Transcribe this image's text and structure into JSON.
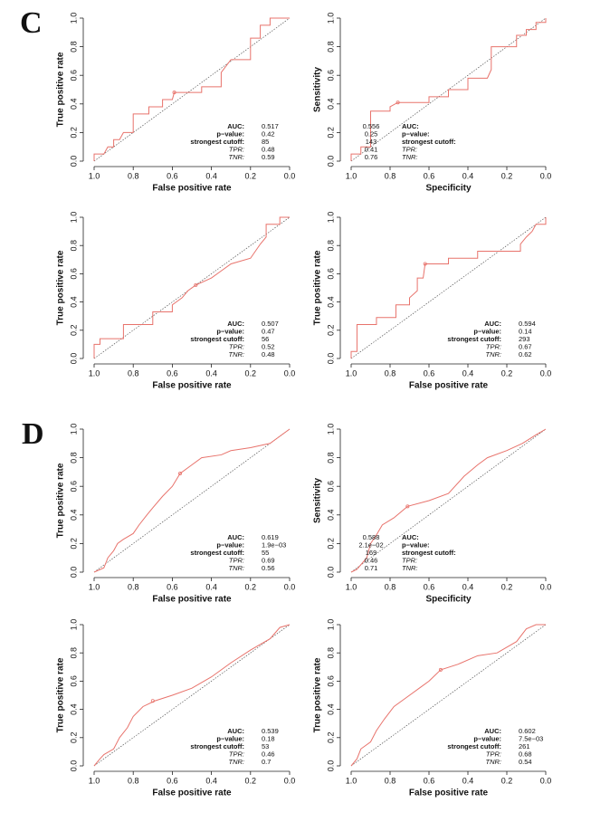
{
  "panels": [
    "C",
    "D"
  ],
  "chart_data": [
    {
      "type": "line",
      "xlabel": "False positive rate",
      "ylabel": "True positive rate",
      "x": [
        1,
        1,
        0.95,
        0.93,
        0.9,
        0.9,
        0.87,
        0.85,
        0.8,
        0.8,
        0.72,
        0.72,
        0.65,
        0.65,
        0.6,
        0.59,
        0.45,
        0.45,
        0.35,
        0.35,
        0.3,
        0.2,
        0.2,
        0.15,
        0.15,
        0.1,
        0.1,
        0
      ],
      "series": [
        {
          "color": "#e8736c",
          "values": [
            0,
            0.05,
            0.05,
            0.1,
            0.1,
            0.15,
            0.15,
            0.2,
            0.2,
            0.33,
            0.33,
            0.38,
            0.38,
            0.43,
            0.43,
            0.48,
            0.48,
            0.52,
            0.52,
            0.62,
            0.71,
            0.71,
            0.86,
            0.86,
            0.95,
            0.95,
            1,
            1
          ]
        }
      ],
      "xlim": [
        1,
        0
      ],
      "ylim": [
        0,
        1
      ],
      "xticks": [
        {
          "value": 1,
          "label": "1.0"
        },
        0.8,
        0.6,
        0.4,
        0.2,
        {
          "value": 0,
          "label": "0.0"
        }
      ],
      "yticks": [
        {
          "value": 0,
          "label": "0.0"
        },
        0.2,
        0.4,
        0.6,
        0.8,
        {
          "value": 1,
          "label": "1.0"
        }
      ],
      "stat_labels": [
        "AUC:",
        "p−value:",
        "strongest cutoff:",
        "TPR:",
        "TNR:"
      ],
      "auc": 0.517,
      "p_value": 0.42,
      "cutoff": 85,
      "tpr": 0.48,
      "tnr": 0.59
    },
    {
      "type": "line",
      "xlabel": "Specificity",
      "ylabel": "Sensitivity",
      "x": [
        1,
        1,
        0.95,
        0.95,
        0.9,
        0.9,
        0.8,
        0.8,
        0.76,
        0.6,
        0.6,
        0.5,
        0.5,
        0.4,
        0.4,
        0.3,
        0.28,
        0.28,
        0.15,
        0.15,
        0.1,
        0.1,
        0.05,
        0.05,
        0,
        0
      ],
      "series": [
        {
          "color": "#e8736c",
          "values": [
            0,
            0.05,
            0.05,
            0.1,
            0.1,
            0.35,
            0.35,
            0.38,
            0.41,
            0.41,
            0.45,
            0.45,
            0.5,
            0.5,
            0.58,
            0.58,
            0.64,
            0.8,
            0.8,
            0.88,
            0.88,
            0.92,
            0.92,
            0.97,
            0.97,
            1
          ]
        }
      ],
      "xlim": [
        1,
        0
      ],
      "ylim": [
        0,
        1
      ],
      "xticks": [
        {
          "value": 1,
          "label": "1.0"
        },
        0.8,
        0.6,
        0.4,
        0.2,
        {
          "value": 0,
          "label": "0.0"
        }
      ],
      "yticks": [
        {
          "value": 0,
          "label": "0.0"
        },
        0.2,
        0.4,
        0.6,
        0.8,
        {
          "value": 1,
          "label": "1.0"
        }
      ],
      "stat_labels": [
        "AUC:",
        "p−value:",
        "strongest cutoff:",
        "TPR:",
        "TNR:"
      ],
      "auc": 0.556,
      "p_value": 0.25,
      "cutoff": 143,
      "tpr": 0.41,
      "tnr": 0.76
    },
    {
      "type": "line",
      "xlabel": "False positive rate",
      "ylabel": "True positive rate",
      "x": [
        1,
        1,
        0.97,
        0.97,
        0.85,
        0.85,
        0.7,
        0.7,
        0.6,
        0.6,
        0.55,
        0.52,
        0.48,
        0.4,
        0.35,
        0.3,
        0.2,
        0.15,
        0.12,
        0.12,
        0.05,
        0.05,
        0
      ],
      "series": [
        {
          "color": "#e8736c",
          "values": [
            0,
            0.1,
            0.1,
            0.14,
            0.14,
            0.24,
            0.24,
            0.33,
            0.33,
            0.38,
            0.43,
            0.48,
            0.52,
            0.57,
            0.62,
            0.67,
            0.71,
            0.81,
            0.86,
            0.95,
            0.95,
            1,
            1
          ]
        }
      ],
      "xlim": [
        1,
        0
      ],
      "ylim": [
        0,
        1
      ],
      "xticks": [
        {
          "value": 1,
          "label": "1.0"
        },
        0.8,
        0.6,
        0.4,
        0.2,
        {
          "value": 0,
          "label": "0.0"
        }
      ],
      "yticks": [
        {
          "value": 0,
          "label": "0.0"
        },
        0.2,
        0.4,
        0.6,
        0.8,
        {
          "value": 1,
          "label": "1.0"
        }
      ],
      "stat_labels": [
        "AUC:",
        "p−value:",
        "strongest cutoff:",
        "TPR:",
        "TNR:"
      ],
      "auc": 0.507,
      "p_value": 0.47,
      "cutoff": 56,
      "tpr": 0.52,
      "tnr": 0.48
    },
    {
      "type": "line",
      "xlabel": "False positive rate",
      "ylabel": "True positive rate",
      "x": [
        1,
        1,
        0.97,
        0.97,
        0.87,
        0.87,
        0.77,
        0.77,
        0.7,
        0.7,
        0.66,
        0.66,
        0.63,
        0.62,
        0.5,
        0.5,
        0.35,
        0.35,
        0.13,
        0.13,
        0.1,
        0.07,
        0.05,
        0,
        0
      ],
      "series": [
        {
          "color": "#e8736c",
          "values": [
            0,
            0.05,
            0.05,
            0.24,
            0.24,
            0.29,
            0.29,
            0.38,
            0.38,
            0.43,
            0.48,
            0.57,
            0.57,
            0.67,
            0.67,
            0.71,
            0.71,
            0.76,
            0.76,
            0.81,
            0.86,
            0.9,
            0.95,
            0.95,
            1
          ]
        }
      ],
      "xlim": [
        1,
        0
      ],
      "ylim": [
        0,
        1
      ],
      "xticks": [
        {
          "value": 1,
          "label": "1.0"
        },
        0.8,
        0.6,
        0.4,
        0.2,
        {
          "value": 0,
          "label": "0.0"
        }
      ],
      "yticks": [
        {
          "value": 0,
          "label": "0.0"
        },
        0.2,
        0.4,
        0.6,
        0.8,
        {
          "value": 1,
          "label": "1.0"
        }
      ],
      "stat_labels": [
        "AUC:",
        "p−value:",
        "strongest cutoff:",
        "TPR:",
        "TNR:"
      ],
      "auc": 0.594,
      "p_value": 0.14,
      "cutoff": 293,
      "tpr": 0.67,
      "tnr": 0.62
    },
    {
      "type": "line",
      "xlabel": "False positive rate",
      "ylabel": "True positive rate",
      "x": [
        1,
        0.95,
        0.93,
        0.9,
        0.88,
        0.85,
        0.8,
        0.77,
        0.73,
        0.7,
        0.65,
        0.6,
        0.56,
        0.5,
        0.45,
        0.35,
        0.3,
        0.2,
        0.1,
        0.05,
        0
      ],
      "series": [
        {
          "color": "#e8736c",
          "values": [
            0,
            0.03,
            0.1,
            0.15,
            0.2,
            0.23,
            0.27,
            0.33,
            0.4,
            0.45,
            0.53,
            0.6,
            0.69,
            0.75,
            0.8,
            0.82,
            0.85,
            0.87,
            0.9,
            0.95,
            1
          ]
        }
      ],
      "xlim": [
        1,
        0
      ],
      "ylim": [
        0,
        1
      ],
      "xticks": [
        {
          "value": 1,
          "label": "1.0"
        },
        0.8,
        0.6,
        0.4,
        0.2,
        {
          "value": 0,
          "label": "0.0"
        }
      ],
      "yticks": [
        {
          "value": 0,
          "label": "0.0"
        },
        0.2,
        0.4,
        0.6,
        0.8,
        {
          "value": 1,
          "label": "1.0"
        }
      ],
      "stat_labels": [
        "AUC:",
        "p−value:",
        "strongest cutoff:",
        "TPR:",
        "TNR:"
      ],
      "auc": 0.619,
      "p_value": {
        "value": 0.0019,
        "label": "1.9e−03"
      },
      "cutoff": 55,
      "tpr": 0.69,
      "tnr": 0.56
    },
    {
      "type": "line",
      "xlabel": "Specificity",
      "ylabel": "Sensitivity",
      "x": [
        1,
        0.97,
        0.92,
        0.9,
        0.87,
        0.84,
        0.78,
        0.71,
        0.6,
        0.5,
        0.42,
        0.35,
        0.3,
        0.2,
        0.12,
        0.05,
        0
      ],
      "series": [
        {
          "color": "#e8736c",
          "values": [
            0,
            0.02,
            0.1,
            0.2,
            0.26,
            0.33,
            0.38,
            0.46,
            0.5,
            0.55,
            0.67,
            0.75,
            0.8,
            0.85,
            0.9,
            0.96,
            1
          ]
        }
      ],
      "xlim": [
        1,
        0
      ],
      "ylim": [
        0,
        1
      ],
      "xticks": [
        {
          "value": 1,
          "label": "1.0"
        },
        0.8,
        0.6,
        0.4,
        0.2,
        {
          "value": 0,
          "label": "0.0"
        }
      ],
      "yticks": [
        {
          "value": 0,
          "label": "0.0"
        },
        0.2,
        0.4,
        0.6,
        0.8,
        {
          "value": 1,
          "label": "1.0"
        }
      ],
      "stat_labels": [
        "AUC:",
        "p−value:",
        "strongest cutoff:",
        "TPR:",
        "TNR:"
      ],
      "auc": 0.588,
      "p_value": {
        "value": 0.021,
        "label": "2.1e−02"
      },
      "cutoff": 169,
      "tpr": 0.46,
      "tnr": 0.71
    },
    {
      "type": "line",
      "xlabel": "False positive rate",
      "ylabel": "True positive rate",
      "x": [
        1,
        0.97,
        0.95,
        0.9,
        0.87,
        0.83,
        0.8,
        0.75,
        0.69,
        0.6,
        0.5,
        0.4,
        0.3,
        0.2,
        0.1,
        0.05,
        0
      ],
      "series": [
        {
          "color": "#e8736c",
          "values": [
            0,
            0.05,
            0.08,
            0.12,
            0.2,
            0.27,
            0.35,
            0.42,
            0.46,
            0.5,
            0.55,
            0.63,
            0.73,
            0.82,
            0.9,
            0.98,
            1
          ]
        }
      ],
      "xlim": [
        1,
        0
      ],
      "ylim": [
        0,
        1
      ],
      "xticks": [
        {
          "value": 1,
          "label": "1.0"
        },
        0.8,
        0.6,
        0.4,
        0.2,
        {
          "value": 0,
          "label": "0.0"
        }
      ],
      "yticks": [
        {
          "value": 0,
          "label": "0.0"
        },
        0.2,
        0.4,
        0.6,
        0.8,
        {
          "value": 1,
          "label": "1.0"
        }
      ],
      "stat_labels": [
        "AUC:",
        "p−value:",
        "strongest cutoff:",
        "TPR:",
        "TNR:"
      ],
      "auc": 0.539,
      "p_value": 0.18,
      "cutoff": 53,
      "tpr": 0.46,
      "tnr": 0.7
    },
    {
      "type": "line",
      "xlabel": "False positive rate",
      "ylabel": "True positive rate",
      "x": [
        1,
        0.97,
        0.95,
        0.9,
        0.87,
        0.83,
        0.78,
        0.72,
        0.65,
        0.6,
        0.54,
        0.45,
        0.35,
        0.25,
        0.15,
        0.1,
        0.05,
        0
      ],
      "series": [
        {
          "color": "#e8736c",
          "values": [
            0,
            0.05,
            0.12,
            0.17,
            0.25,
            0.33,
            0.42,
            0.48,
            0.55,
            0.6,
            0.68,
            0.72,
            0.78,
            0.8,
            0.88,
            0.97,
            1,
            1
          ]
        }
      ],
      "xlim": [
        1,
        0
      ],
      "ylim": [
        0,
        1
      ],
      "xticks": [
        {
          "value": 1,
          "label": "1.0"
        },
        0.8,
        0.6,
        0.4,
        0.2,
        {
          "value": 0,
          "label": "0.0"
        }
      ],
      "yticks": [
        {
          "value": 0,
          "label": "0.0"
        },
        0.2,
        0.4,
        0.6,
        0.8,
        {
          "value": 1,
          "label": "1.0"
        }
      ],
      "stat_labels": [
        "AUC:",
        "p−value:",
        "strongest cutoff:",
        "TPR:",
        "TNR:"
      ],
      "auc": 0.602,
      "p_value": {
        "value": 0.0075,
        "label": "7.5e−03"
      },
      "cutoff": 261,
      "tpr": 0.68,
      "tnr": 0.54
    }
  ]
}
